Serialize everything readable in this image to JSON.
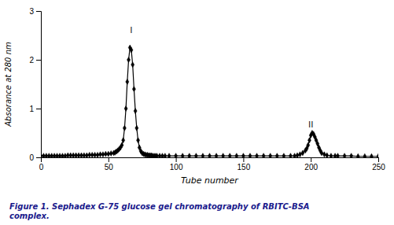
{
  "chart_data": {
    "type": "line",
    "x_label": "Tube number",
    "y_label": "Absorance at 280 nm",
    "caption": "Figure 1. Sephadex G-75 glucose gel chromatography of RBITC-BSA\ncomplex.",
    "annotations": [
      {
        "text": "I",
        "x": 67,
        "y": 2.55
      },
      {
        "text": "II",
        "x": 200,
        "y": 0.62
      }
    ],
    "color": "#000000",
    "marker": "diamond",
    "grid": false,
    "xlim": [
      0,
      250
    ],
    "ylim": [
      0,
      3
    ],
    "xticks": [
      0,
      50,
      100,
      150,
      200,
      250
    ],
    "yticks": [
      0,
      1,
      2,
      3
    ],
    "x": [
      0,
      2,
      4,
      6,
      8,
      10,
      12,
      14,
      16,
      18,
      20,
      22,
      24,
      26,
      28,
      30,
      32,
      34,
      36,
      38,
      40,
      42,
      44,
      46,
      48,
      50,
      52,
      54,
      55,
      56,
      57,
      58,
      59,
      60,
      61,
      62,
      63,
      64,
      65,
      66,
      67,
      68,
      69,
      70,
      71,
      72,
      73,
      74,
      75,
      76,
      77,
      78,
      79,
      80,
      81,
      82,
      83,
      84,
      85,
      86,
      88,
      90,
      92,
      95,
      100,
      105,
      110,
      115,
      120,
      125,
      130,
      135,
      140,
      145,
      150,
      155,
      160,
      165,
      170,
      175,
      180,
      185,
      188,
      190,
      192,
      194,
      196,
      197,
      198,
      199,
      200,
      201,
      202,
      203,
      204,
      205,
      206,
      207,
      208,
      210,
      212,
      215,
      218,
      220,
      225,
      230,
      235,
      240,
      245,
      250
    ],
    "values": [
      0.03,
      0.03,
      0.03,
      0.03,
      0.03,
      0.03,
      0.03,
      0.03,
      0.03,
      0.03,
      0.04,
      0.04,
      0.04,
      0.04,
      0.04,
      0.04,
      0.04,
      0.04,
      0.05,
      0.05,
      0.05,
      0.05,
      0.06,
      0.06,
      0.07,
      0.07,
      0.08,
      0.09,
      0.1,
      0.12,
      0.14,
      0.17,
      0.2,
      0.25,
      0.35,
      0.6,
      1.0,
      1.55,
      2.0,
      2.25,
      2.2,
      1.9,
      1.4,
      0.95,
      0.6,
      0.35,
      0.2,
      0.13,
      0.09,
      0.07,
      0.06,
      0.05,
      0.05,
      0.04,
      0.04,
      0.04,
      0.03,
      0.03,
      0.03,
      0.03,
      0.03,
      0.03,
      0.03,
      0.03,
      0.03,
      0.03,
      0.03,
      0.03,
      0.03,
      0.03,
      0.03,
      0.03,
      0.03,
      0.03,
      0.03,
      0.03,
      0.03,
      0.03,
      0.03,
      0.03,
      0.03,
      0.03,
      0.03,
      0.04,
      0.06,
      0.09,
      0.14,
      0.18,
      0.25,
      0.35,
      0.45,
      0.5,
      0.48,
      0.42,
      0.35,
      0.28,
      0.2,
      0.14,
      0.09,
      0.06,
      0.04,
      0.03,
      0.03,
      0.03,
      0.03,
      0.03,
      0.02,
      0.02,
      0.02,
      0.02
    ]
  }
}
